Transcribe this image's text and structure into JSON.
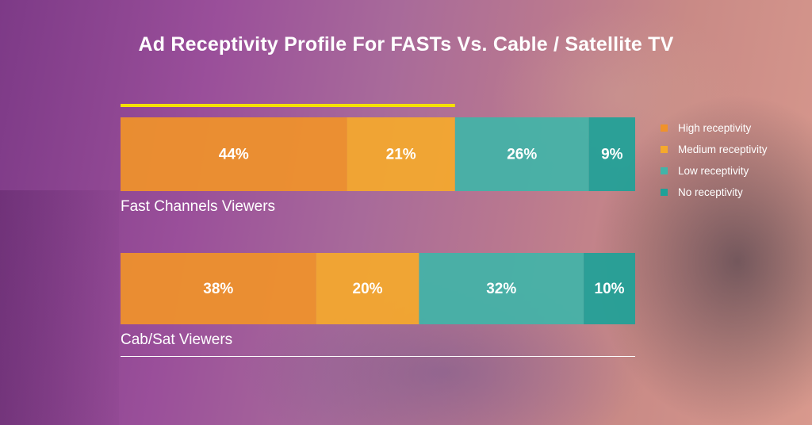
{
  "colors": {
    "high": "#F0922A",
    "medium": "#F5A92C",
    "low": "#42B4A8",
    "none": "#1FA198",
    "accent_bar": "#F5E100",
    "text": "#FFFFFF"
  },
  "chart_data": {
    "type": "bar",
    "orientation": "horizontal",
    "stacked": true,
    "percent": true,
    "title": "Ad Receptivity Profile For FASTs Vs. Cable / Satellite TV",
    "categories": [
      "Fast Channels Viewers",
      "Cab/Sat Viewers"
    ],
    "series": [
      {
        "name": "High receptivity",
        "values": [
          44,
          38
        ],
        "labels": [
          "44%",
          "38%"
        ],
        "color": "#F0922A"
      },
      {
        "name": "Medium receptivity",
        "values": [
          21,
          20
        ],
        "labels": [
          "21%",
          "20%"
        ],
        "color": "#F5A92C"
      },
      {
        "name": "Low receptivity",
        "values": [
          26,
          32
        ],
        "labels": [
          "26%",
          "32%"
        ],
        "color": "#42B4A8"
      },
      {
        "name": "No receptivity",
        "values": [
          9,
          10
        ],
        "labels": [
          "9%",
          "10%"
        ],
        "color": "#1FA198"
      }
    ],
    "xlim": [
      0,
      100
    ],
    "legend_position": "right",
    "grid": false
  }
}
